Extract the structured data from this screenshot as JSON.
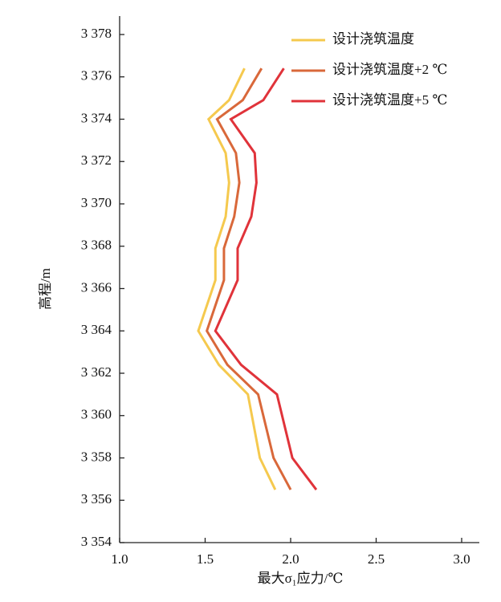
{
  "chart_data": {
    "type": "line",
    "x_label": "最大σ₁应力/℃",
    "y_label": "高程/m",
    "y": [
      3376.4,
      3374.9,
      3374.0,
      3372.4,
      3371.0,
      3369.4,
      3367.9,
      3366.4,
      3364.0,
      3362.4,
      3361.0,
      3358.0,
      3356.5
    ],
    "series": [
      {
        "name": "设计浇筑温度",
        "color": "#f5c94e",
        "values": [
          1.73,
          1.64,
          1.52,
          1.62,
          1.64,
          1.62,
          1.56,
          1.56,
          1.46,
          1.58,
          1.75,
          1.82,
          1.91
        ]
      },
      {
        "name": "设计浇筑温度+2 ℃",
        "color": "#d9683a",
        "values": [
          1.83,
          1.72,
          1.57,
          1.68,
          1.7,
          1.67,
          1.61,
          1.61,
          1.51,
          1.63,
          1.81,
          1.9,
          2.0
        ]
      },
      {
        "name": "设计浇筑温度+5 ℃",
        "color": "#e0333a",
        "values": [
          1.96,
          1.84,
          1.65,
          1.79,
          1.8,
          1.77,
          1.69,
          1.69,
          1.56,
          1.71,
          1.92,
          2.01,
          2.15
        ]
      }
    ],
    "xlim": [
      1.0,
      3.1
    ],
    "xticks": [
      {
        "value": 1.0,
        "label": "1.0"
      },
      {
        "value": 1.5,
        "label": "1.5"
      },
      {
        "value": 2.0,
        "label": "2.0"
      },
      {
        "value": 2.5,
        "label": "2.5"
      },
      {
        "value": 3.0,
        "label": "3.0"
      }
    ],
    "ylim": [
      3354,
      3379
    ],
    "yticks": [
      {
        "value": 3354,
        "label": "3 354"
      },
      {
        "value": 3356,
        "label": "3 356"
      },
      {
        "value": 3358,
        "label": "3 358"
      },
      {
        "value": 3360,
        "label": "3 360"
      },
      {
        "value": 3362,
        "label": "3 362"
      },
      {
        "value": 3364,
        "label": "3 364"
      },
      {
        "value": 3366,
        "label": "3 366"
      },
      {
        "value": 3368,
        "label": "3 368"
      },
      {
        "value": 3370,
        "label": "3 370"
      },
      {
        "value": 3372,
        "label": "3 372"
      },
      {
        "value": 3374,
        "label": "3 374"
      },
      {
        "value": 3376,
        "label": "3 376"
      },
      {
        "value": 3378,
        "label": "3 378"
      }
    ],
    "legend": "upper-right"
  }
}
